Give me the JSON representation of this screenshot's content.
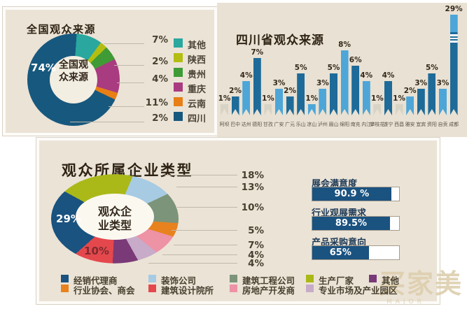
{
  "chart_data": [
    {
      "id": "national_audience_source",
      "type": "pie",
      "subtype": "donut",
      "title": "全国观众来源",
      "center_text": "全国观\n众来源",
      "on_slice_label": "74%",
      "slices": [
        {
          "label": "其他",
          "value": 7,
          "color": "#2aa79e"
        },
        {
          "label": "陕西",
          "value": 2,
          "color": "#b4bd11"
        },
        {
          "label": "贵州",
          "value": 4,
          "color": "#3f9b35"
        },
        {
          "label": "重庆",
          "value": 11,
          "color": "#a93b80"
        },
        {
          "label": "云南",
          "value": 2,
          "color": "#e77f16"
        },
        {
          "label": "四川",
          "value": 74,
          "color": "#17587e"
        }
      ],
      "callout_values": [
        "7%",
        "2%",
        "4%",
        "11%",
        "2%"
      ],
      "legend_position": "right"
    },
    {
      "id": "sichuan_audience_source",
      "type": "bar",
      "title": "四川省观众来源",
      "unit": "%",
      "categories": [
        "阿坝",
        "巴中",
        "达州",
        "德阳",
        "甘孜",
        "广安",
        "广元",
        "乐山",
        "凉山",
        "泸州",
        "眉山",
        "绵阳",
        "南充",
        "内江",
        "攀枝花",
        "遂宁",
        "西昌",
        "雅安",
        "宜宾",
        "资阳",
        "自贡",
        "成都"
      ],
      "values": [
        1,
        2,
        4,
        7,
        1,
        3,
        2,
        5,
        1,
        3,
        5,
        8,
        6,
        4,
        1,
        4,
        1,
        2,
        3,
        5,
        3,
        29
      ],
      "bar_shades": [
        "pale",
        "dark",
        "light",
        "dark",
        "pale",
        "light",
        "dark",
        "dark",
        "light",
        "light",
        "dark",
        "light",
        "dark",
        "light",
        "pale",
        "dark",
        "pale",
        "light",
        "dark",
        "dark",
        "light",
        "dark"
      ],
      "colors": {
        "light": "#4da6d7",
        "dark": "#1e6b99",
        "pale": "#d7d4c6"
      },
      "axis_break_bar": "成都",
      "grid": false
    },
    {
      "id": "audience_enterprise_type",
      "type": "pie",
      "subtype": "donut",
      "title": "观众所属企业类型",
      "center_text": "观众企\n业类型",
      "on_slice_labels": [
        "29%",
        "10%"
      ],
      "slices": [
        {
          "label": "生产厂家",
          "value": 18,
          "color": "#aab918"
        },
        {
          "label": "装饰公司",
          "value": 13,
          "color": "#a6cbe3"
        },
        {
          "label": "建筑工程公司",
          "value": 10,
          "color": "#7c9479"
        },
        {
          "label": "行业协会、商会",
          "value": 5,
          "color": "#e8821e"
        },
        {
          "label": "房地产开发商",
          "value": 7,
          "color": "#ee92a6"
        },
        {
          "label": "专业市场及产业园区",
          "value": 4,
          "color": "#c7abc9"
        },
        {
          "label": "其他",
          "value": 4,
          "color": "#7a3a78"
        },
        {
          "label": "建筑设计院所",
          "value": 10,
          "color": "#e4484d"
        },
        {
          "label": "经销代理商",
          "value": 29,
          "color": "#1a5280"
        }
      ],
      "callout_values": [
        "18%",
        "13%",
        "10%",
        "5%",
        "7%",
        "4%",
        "4%"
      ],
      "legend_rows": [
        [
          {
            "label": "经销代理商",
            "color": "#1a5280"
          },
          {
            "label": "装饰公司",
            "color": "#a6cbe3"
          },
          {
            "label": "建筑工程公司",
            "color": "#7c9479"
          },
          {
            "label": "生产厂家",
            "color": "#aab918"
          },
          {
            "label": "其他",
            "color": "#7a3a78"
          }
        ],
        [
          {
            "label": "行业协会、商会",
            "color": "#e8821e"
          },
          {
            "label": "建筑设计院所",
            "color": "#e4484d"
          },
          {
            "label": "房地产开发商",
            "color": "#ee92a6"
          },
          {
            "label": "专业市场及产业园区",
            "color": "#c7abc9"
          }
        ]
      ]
    },
    {
      "id": "audience_metrics",
      "type": "bar",
      "orientation": "horizontal",
      "max": 100,
      "items": [
        {
          "label": "展会满意度",
          "value": 90.9,
          "value_text": "90.9 %"
        },
        {
          "label": "行业观展需求",
          "value": 89.5,
          "value_text": "89.5%"
        },
        {
          "label": "产品采购意向",
          "value": 65,
          "value_text": "65%"
        }
      ],
      "fill_color": "#1a5280"
    }
  ],
  "watermark": {
    "text": "买家美",
    "subtext": "MAJOR"
  }
}
